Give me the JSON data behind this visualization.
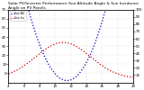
{
  "title": "Solar PV/Inverter Performance Sun Altitude Angle & Sun Incidence Angle on PV Panels",
  "title_fontsize": 3.8,
  "x_start": 4,
  "x_end": 20,
  "x_ticks": [
    4,
    6,
    8,
    10,
    12,
    14,
    16,
    18,
    20
  ],
  "ylim_left": [
    -10,
    70
  ],
  "ylim_right": [
    0,
    100
  ],
  "y_ticks_left": [
    0,
    10,
    20,
    30,
    40,
    50,
    60,
    70
  ],
  "y_ticks_right": [
    10,
    20,
    30,
    40,
    50,
    60,
    70,
    80,
    90,
    100
  ],
  "blue_color": "#0000cc",
  "red_color": "#cc0000",
  "bg_color": "#ffffff",
  "grid_color": "#aaaaaa",
  "legend_alt": "Sun Alt",
  "legend_inc": "Sun Inc"
}
